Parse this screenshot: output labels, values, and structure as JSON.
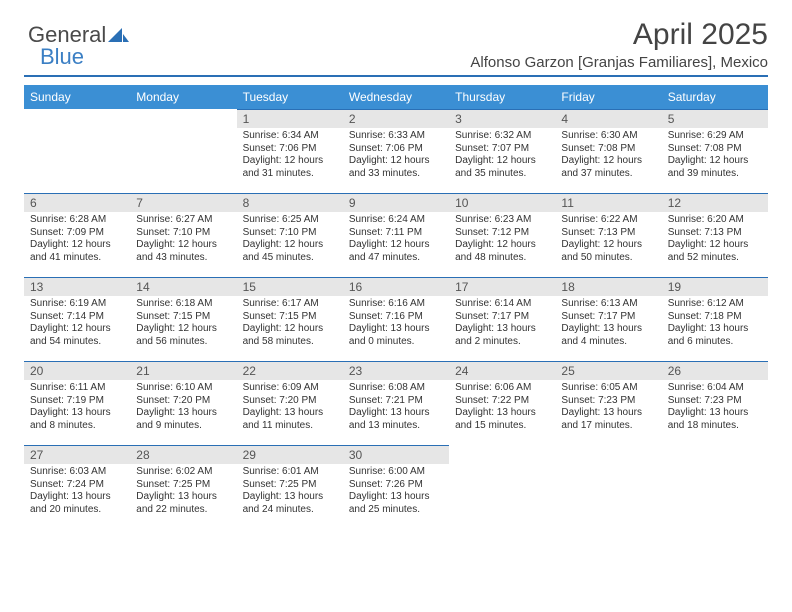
{
  "logo": {
    "text_general": "General",
    "text_blue": "Blue"
  },
  "header": {
    "title": "April 2025",
    "subtitle": "Alfonso Garzon [Granjas Familiares], Mexico"
  },
  "styling": {
    "header_bg": "#3b8fd4",
    "header_text": "#ffffff",
    "daynum_bg": "#e6e6e6",
    "daynum_text": "#555555",
    "rule_color": "#2a6fb5",
    "body_text": "#333333",
    "title_color": "#444444",
    "page_bg": "#ffffff",
    "title_fontsize": 30,
    "subtitle_fontsize": 15,
    "th_fontsize": 12,
    "daynum_fontsize": 12,
    "cell_fontsize": 10,
    "columns": 7,
    "rows": 6
  },
  "day_names": [
    "Sunday",
    "Monday",
    "Tuesday",
    "Wednesday",
    "Thursday",
    "Friday",
    "Saturday"
  ],
  "days": [
    {
      "n": "",
      "sr": "",
      "ss": "",
      "dl1": "",
      "dl2": ""
    },
    {
      "n": "",
      "sr": "",
      "ss": "",
      "dl1": "",
      "dl2": ""
    },
    {
      "n": "1",
      "sr": "Sunrise: 6:34 AM",
      "ss": "Sunset: 7:06 PM",
      "dl1": "Daylight: 12 hours",
      "dl2": "and 31 minutes."
    },
    {
      "n": "2",
      "sr": "Sunrise: 6:33 AM",
      "ss": "Sunset: 7:06 PM",
      "dl1": "Daylight: 12 hours",
      "dl2": "and 33 minutes."
    },
    {
      "n": "3",
      "sr": "Sunrise: 6:32 AM",
      "ss": "Sunset: 7:07 PM",
      "dl1": "Daylight: 12 hours",
      "dl2": "and 35 minutes."
    },
    {
      "n": "4",
      "sr": "Sunrise: 6:30 AM",
      "ss": "Sunset: 7:08 PM",
      "dl1": "Daylight: 12 hours",
      "dl2": "and 37 minutes."
    },
    {
      "n": "5",
      "sr": "Sunrise: 6:29 AM",
      "ss": "Sunset: 7:08 PM",
      "dl1": "Daylight: 12 hours",
      "dl2": "and 39 minutes."
    },
    {
      "n": "6",
      "sr": "Sunrise: 6:28 AM",
      "ss": "Sunset: 7:09 PM",
      "dl1": "Daylight: 12 hours",
      "dl2": "and 41 minutes."
    },
    {
      "n": "7",
      "sr": "Sunrise: 6:27 AM",
      "ss": "Sunset: 7:10 PM",
      "dl1": "Daylight: 12 hours",
      "dl2": "and 43 minutes."
    },
    {
      "n": "8",
      "sr": "Sunrise: 6:25 AM",
      "ss": "Sunset: 7:10 PM",
      "dl1": "Daylight: 12 hours",
      "dl2": "and 45 minutes."
    },
    {
      "n": "9",
      "sr": "Sunrise: 6:24 AM",
      "ss": "Sunset: 7:11 PM",
      "dl1": "Daylight: 12 hours",
      "dl2": "and 47 minutes."
    },
    {
      "n": "10",
      "sr": "Sunrise: 6:23 AM",
      "ss": "Sunset: 7:12 PM",
      "dl1": "Daylight: 12 hours",
      "dl2": "and 48 minutes."
    },
    {
      "n": "11",
      "sr": "Sunrise: 6:22 AM",
      "ss": "Sunset: 7:13 PM",
      "dl1": "Daylight: 12 hours",
      "dl2": "and 50 minutes."
    },
    {
      "n": "12",
      "sr": "Sunrise: 6:20 AM",
      "ss": "Sunset: 7:13 PM",
      "dl1": "Daylight: 12 hours",
      "dl2": "and 52 minutes."
    },
    {
      "n": "13",
      "sr": "Sunrise: 6:19 AM",
      "ss": "Sunset: 7:14 PM",
      "dl1": "Daylight: 12 hours",
      "dl2": "and 54 minutes."
    },
    {
      "n": "14",
      "sr": "Sunrise: 6:18 AM",
      "ss": "Sunset: 7:15 PM",
      "dl1": "Daylight: 12 hours",
      "dl2": "and 56 minutes."
    },
    {
      "n": "15",
      "sr": "Sunrise: 6:17 AM",
      "ss": "Sunset: 7:15 PM",
      "dl1": "Daylight: 12 hours",
      "dl2": "and 58 minutes."
    },
    {
      "n": "16",
      "sr": "Sunrise: 6:16 AM",
      "ss": "Sunset: 7:16 PM",
      "dl1": "Daylight: 13 hours",
      "dl2": "and 0 minutes."
    },
    {
      "n": "17",
      "sr": "Sunrise: 6:14 AM",
      "ss": "Sunset: 7:17 PM",
      "dl1": "Daylight: 13 hours",
      "dl2": "and 2 minutes."
    },
    {
      "n": "18",
      "sr": "Sunrise: 6:13 AM",
      "ss": "Sunset: 7:17 PM",
      "dl1": "Daylight: 13 hours",
      "dl2": "and 4 minutes."
    },
    {
      "n": "19",
      "sr": "Sunrise: 6:12 AM",
      "ss": "Sunset: 7:18 PM",
      "dl1": "Daylight: 13 hours",
      "dl2": "and 6 minutes."
    },
    {
      "n": "20",
      "sr": "Sunrise: 6:11 AM",
      "ss": "Sunset: 7:19 PM",
      "dl1": "Daylight: 13 hours",
      "dl2": "and 8 minutes."
    },
    {
      "n": "21",
      "sr": "Sunrise: 6:10 AM",
      "ss": "Sunset: 7:20 PM",
      "dl1": "Daylight: 13 hours",
      "dl2": "and 9 minutes."
    },
    {
      "n": "22",
      "sr": "Sunrise: 6:09 AM",
      "ss": "Sunset: 7:20 PM",
      "dl1": "Daylight: 13 hours",
      "dl2": "and 11 minutes."
    },
    {
      "n": "23",
      "sr": "Sunrise: 6:08 AM",
      "ss": "Sunset: 7:21 PM",
      "dl1": "Daylight: 13 hours",
      "dl2": "and 13 minutes."
    },
    {
      "n": "24",
      "sr": "Sunrise: 6:06 AM",
      "ss": "Sunset: 7:22 PM",
      "dl1": "Daylight: 13 hours",
      "dl2": "and 15 minutes."
    },
    {
      "n": "25",
      "sr": "Sunrise: 6:05 AM",
      "ss": "Sunset: 7:23 PM",
      "dl1": "Daylight: 13 hours",
      "dl2": "and 17 minutes."
    },
    {
      "n": "26",
      "sr": "Sunrise: 6:04 AM",
      "ss": "Sunset: 7:23 PM",
      "dl1": "Daylight: 13 hours",
      "dl2": "and 18 minutes."
    },
    {
      "n": "27",
      "sr": "Sunrise: 6:03 AM",
      "ss": "Sunset: 7:24 PM",
      "dl1": "Daylight: 13 hours",
      "dl2": "and 20 minutes."
    },
    {
      "n": "28",
      "sr": "Sunrise: 6:02 AM",
      "ss": "Sunset: 7:25 PM",
      "dl1": "Daylight: 13 hours",
      "dl2": "and 22 minutes."
    },
    {
      "n": "29",
      "sr": "Sunrise: 6:01 AM",
      "ss": "Sunset: 7:25 PM",
      "dl1": "Daylight: 13 hours",
      "dl2": "and 24 minutes."
    },
    {
      "n": "30",
      "sr": "Sunrise: 6:00 AM",
      "ss": "Sunset: 7:26 PM",
      "dl1": "Daylight: 13 hours",
      "dl2": "and 25 minutes."
    },
    {
      "n": "",
      "sr": "",
      "ss": "",
      "dl1": "",
      "dl2": ""
    },
    {
      "n": "",
      "sr": "",
      "ss": "",
      "dl1": "",
      "dl2": ""
    },
    {
      "n": "",
      "sr": "",
      "ss": "",
      "dl1": "",
      "dl2": ""
    }
  ]
}
